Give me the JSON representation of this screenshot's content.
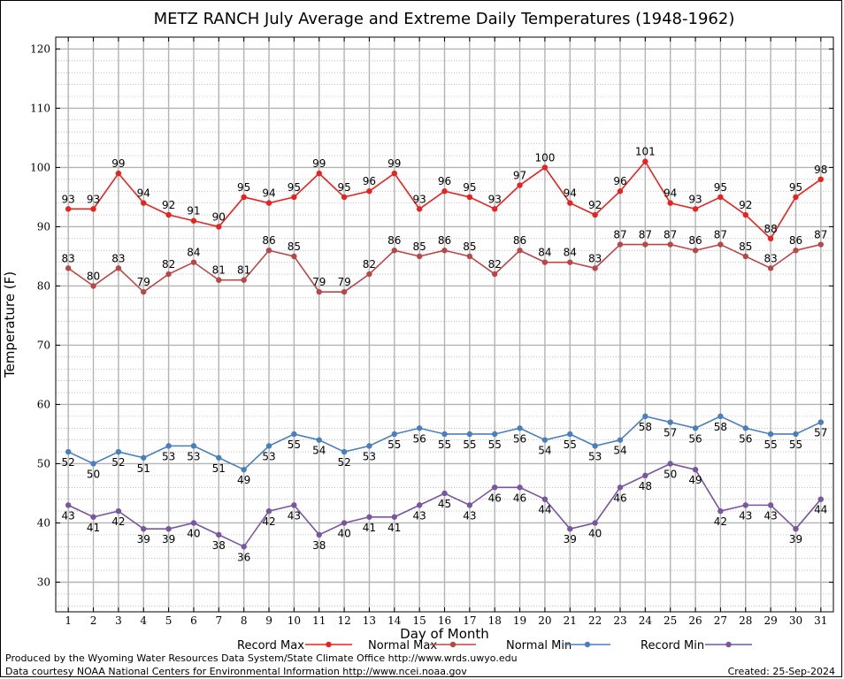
{
  "footer": {
    "line1": "Produced by the Wyoming Water Resources Data System/State Climate Office http://www.wrds.uwyo.edu",
    "line2": "Data courtesy NOAA National Centers for Environmental Information http://www.ncei.noaa.gov",
    "created": "Created:  25-Sep-2024"
  },
  "chart_data": {
    "type": "line",
    "title": "METZ RANCH July Average and Extreme Daily Temperatures (1948-1962)",
    "xlabel": "Day of Month",
    "ylabel": "Temperature (F)",
    "x": [
      1,
      2,
      3,
      4,
      5,
      6,
      7,
      8,
      9,
      10,
      11,
      12,
      13,
      14,
      15,
      16,
      17,
      18,
      19,
      20,
      21,
      22,
      23,
      24,
      25,
      26,
      27,
      28,
      29,
      30,
      31
    ],
    "xlim": [
      0.5,
      31.5
    ],
    "ylim": [
      25,
      122
    ],
    "yticks": [
      30,
      40,
      50,
      60,
      70,
      80,
      90,
      100,
      110,
      120
    ],
    "grid": true,
    "legend_position": "bottom",
    "series": [
      {
        "name": "Record Max",
        "color": "#e8231f",
        "values": [
          93,
          93,
          99,
          94,
          92,
          91,
          90,
          95,
          94,
          95,
          99,
          95,
          96,
          99,
          93,
          96,
          95,
          93,
          97,
          100,
          94,
          92,
          96,
          101,
          94,
          93,
          95,
          92,
          88,
          95,
          98
        ]
      },
      {
        "name": "Normal Max",
        "color": "#b84848",
        "values": [
          83,
          80,
          83,
          79,
          82,
          84,
          81,
          81,
          86,
          85,
          79,
          79,
          82,
          86,
          85,
          86,
          85,
          82,
          86,
          84,
          84,
          83,
          87,
          87,
          87,
          86,
          87,
          85,
          83,
          86,
          87
        ]
      },
      {
        "name": "Normal Min",
        "color": "#4a7fbe",
        "values": [
          52,
          50,
          52,
          51,
          53,
          53,
          51,
          49,
          53,
          55,
          54,
          52,
          53,
          55,
          56,
          55,
          55,
          55,
          56,
          54,
          55,
          53,
          54,
          58,
          57,
          56,
          58,
          56,
          55,
          55,
          57
        ]
      },
      {
        "name": "Record Min",
        "color": "#7a55a0",
        "values": [
          43,
          41,
          42,
          39,
          39,
          40,
          38,
          36,
          42,
          43,
          38,
          40,
          41,
          41,
          43,
          45,
          43,
          46,
          46,
          44,
          39,
          40,
          46,
          48,
          50,
          49,
          42,
          43,
          43,
          39,
          44
        ]
      }
    ]
  }
}
